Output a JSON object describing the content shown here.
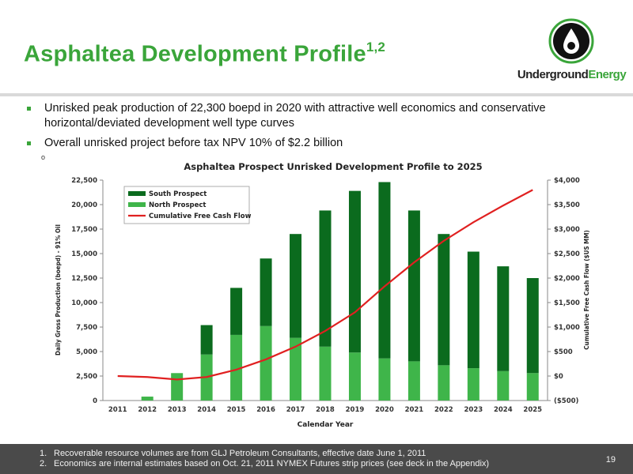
{
  "slide": {
    "title": "Asphaltea Development Profile",
    "title_sup": "1,2",
    "logo_text_part1": "Underground",
    "logo_text_part2": "Energy",
    "bullets": [
      "Unrisked peak production of 22,300 boepd in 2020 with attractive well economics and conservative horizontal/deviated development well type curves",
      "Overall unrisked project before tax NPV 10% of $2.2 billion"
    ],
    "stray_mark": "o",
    "footnotes": [
      {
        "num": "1.",
        "text": "Recoverable resource volumes are from GLJ Petroleum Consultants, effective date June 1, 2011"
      },
      {
        "num": "2.",
        "text": "Economics are internal estimates based on Oct. 21, 2011 NYMEX Futures strip prices (see deck in the Appendix)"
      }
    ],
    "page_number": "19"
  },
  "colors": {
    "brand_green": "#3aa53a",
    "south": "#0b6b1e",
    "north": "#3fb54a",
    "cash_flow": "#e02020",
    "footer_bg": "#4a4a4a"
  },
  "chart_data": {
    "type": "bar",
    "stacked": true,
    "title": "Asphaltea Prospect Unrisked Development Profile to 2025",
    "xlabel": "Calendar Year",
    "ylabel": "Daily Gross Production (boepd) - 91% Oil",
    "y2label": "Cumulative Free Cash Flow ($US MM)",
    "categories": [
      "2011",
      "2012",
      "2013",
      "2014",
      "2015",
      "2016",
      "2017",
      "2018",
      "2019",
      "2020",
      "2021",
      "2022",
      "2023",
      "2024",
      "2025"
    ],
    "ylim": [
      0,
      22500
    ],
    "yticks": [
      0,
      2500,
      5000,
      7500,
      10000,
      12500,
      15000,
      17500,
      20000,
      22500
    ],
    "ytick_labels": [
      "0",
      "2,500",
      "5,000",
      "7,500",
      "10,000",
      "12,500",
      "15,000",
      "17,500",
      "20,000",
      "22,500"
    ],
    "y2lim": [
      -500,
      4000
    ],
    "y2ticks": [
      -500,
      0,
      500,
      1000,
      1500,
      2000,
      2500,
      3000,
      3500,
      4000
    ],
    "y2tick_labels": [
      "($500)",
      "$0",
      "$500",
      "$1,000",
      "$1,500",
      "$2,000",
      "$2,500",
      "$3,000",
      "$3,500",
      "$4,000"
    ],
    "series": [
      {
        "name": "North Prospect",
        "kind": "bar",
        "values": [
          0,
          400,
          2800,
          4700,
          6700,
          7600,
          6400,
          5500,
          4900,
          4300,
          4000,
          3600,
          3300,
          3000,
          2800
        ]
      },
      {
        "name": "South Prospect",
        "kind": "bar",
        "values": [
          0,
          0,
          0,
          3000,
          4800,
          6900,
          10600,
          13900,
          16500,
          18000,
          15400,
          13400,
          11900,
          10700,
          9700
        ]
      },
      {
        "name": "Cumulative Free Cash Flow",
        "kind": "line",
        "axis": "y2",
        "values": [
          0,
          -20,
          -70,
          -20,
          130,
          340,
          600,
          920,
          1300,
          1830,
          2320,
          2760,
          3140,
          3480,
          3800
        ]
      }
    ],
    "legend": {
      "position": "top-left",
      "entries": [
        "South Prospect",
        "North Prospect",
        "Cumulative Free Cash Flow"
      ]
    },
    "grid": false
  }
}
